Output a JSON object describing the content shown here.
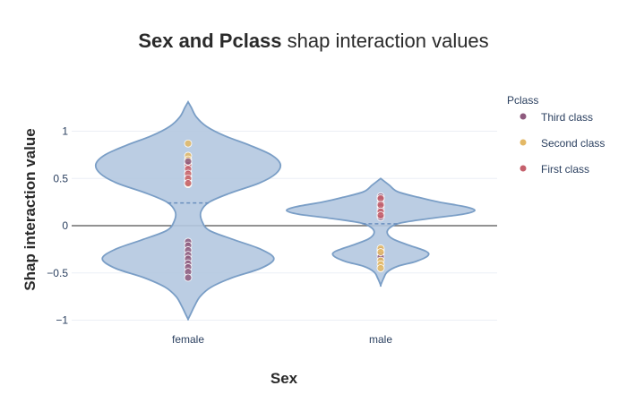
{
  "chart_data": {
    "type": "violin",
    "title_bold": "Sex and Pclass",
    "title_rest": " shap interaction values",
    "xlabel": "Sex",
    "ylabel": "Shap interaction value",
    "categories": [
      "female",
      "male"
    ],
    "ylim": [
      -1,
      1.3
    ],
    "yticks": [
      1,
      0.5,
      0,
      -0.5,
      -1
    ],
    "ytick_labels": [
      "1",
      "0.5",
      "0",
      "−0.5",
      "−1"
    ],
    "zero_line": true,
    "violin_color": "#b4c8e0",
    "violin_line_color": "#7a9ec6",
    "violins": [
      {
        "category": "female",
        "median": 0.24,
        "profile": [
          [
            1.31,
            0.0
          ],
          [
            1.25,
            0.035
          ],
          [
            1.15,
            0.09
          ],
          [
            1.05,
            0.2
          ],
          [
            0.95,
            0.4
          ],
          [
            0.85,
            0.67
          ],
          [
            0.75,
            0.9
          ],
          [
            0.65,
            1.0
          ],
          [
            0.55,
            0.95
          ],
          [
            0.45,
            0.77
          ],
          [
            0.35,
            0.47
          ],
          [
            0.25,
            0.23
          ],
          [
            0.15,
            0.14
          ],
          [
            0.05,
            0.15
          ],
          [
            -0.05,
            0.23
          ],
          [
            -0.15,
            0.5
          ],
          [
            -0.25,
            0.79
          ],
          [
            -0.35,
            0.93
          ],
          [
            -0.45,
            0.79
          ],
          [
            -0.55,
            0.48
          ],
          [
            -0.65,
            0.25
          ],
          [
            -0.75,
            0.13
          ],
          [
            -0.85,
            0.07
          ],
          [
            -0.95,
            0.02
          ],
          [
            -0.99,
            0.0
          ]
        ]
      },
      {
        "category": "male",
        "median": 0.02,
        "profile": [
          [
            0.5,
            0.0
          ],
          [
            0.43,
            0.09
          ],
          [
            0.36,
            0.18
          ],
          [
            0.3,
            0.4
          ],
          [
            0.25,
            0.62
          ],
          [
            0.2,
            0.9
          ],
          [
            0.16,
            1.0
          ],
          [
            0.12,
            0.87
          ],
          [
            0.08,
            0.55
          ],
          [
            0.03,
            0.22
          ],
          [
            -0.02,
            0.1
          ],
          [
            -0.08,
            0.07
          ],
          [
            -0.14,
            0.13
          ],
          [
            -0.2,
            0.28
          ],
          [
            -0.27,
            0.48
          ],
          [
            -0.32,
            0.5
          ],
          [
            -0.38,
            0.37
          ],
          [
            -0.43,
            0.18
          ],
          [
            -0.49,
            0.07
          ],
          [
            -0.56,
            0.03
          ],
          [
            -0.63,
            0.0
          ]
        ]
      }
    ],
    "legend": {
      "title": "Pclass",
      "items": [
        {
          "label": "Third class",
          "color": "#8e5a7e"
        },
        {
          "label": "Second class",
          "color": "#e3b865"
        },
        {
          "label": "First class",
          "color": "#c5606c"
        }
      ]
    },
    "points": [
      {
        "category": "female",
        "class": "Second class",
        "values": [
          0.87,
          0.74,
          0.7,
          0.66,
          0.56,
          0.52,
          0.48,
          0.44
        ]
      },
      {
        "category": "female",
        "class": "First class",
        "values": [
          0.64,
          0.6,
          0.55,
          0.5,
          0.45
        ]
      },
      {
        "category": "female",
        "class": "Third class",
        "values": [
          0.68,
          -0.17,
          -0.21,
          -0.26,
          -0.31,
          -0.35,
          -0.4,
          -0.44,
          -0.49,
          -0.55
        ]
      },
      {
        "category": "male",
        "class": "Third class",
        "values": [
          0.31,
          0.28,
          0.24,
          0.2,
          0.17,
          0.13,
          0.09,
          -0.26,
          -0.3,
          -0.33
        ]
      },
      {
        "category": "male",
        "class": "First class",
        "values": [
          0.29,
          0.22,
          0.15,
          0.11
        ]
      },
      {
        "category": "male",
        "class": "Second class",
        "values": [
          -0.24,
          -0.28,
          -0.37,
          -0.41,
          -0.45
        ]
      }
    ]
  }
}
